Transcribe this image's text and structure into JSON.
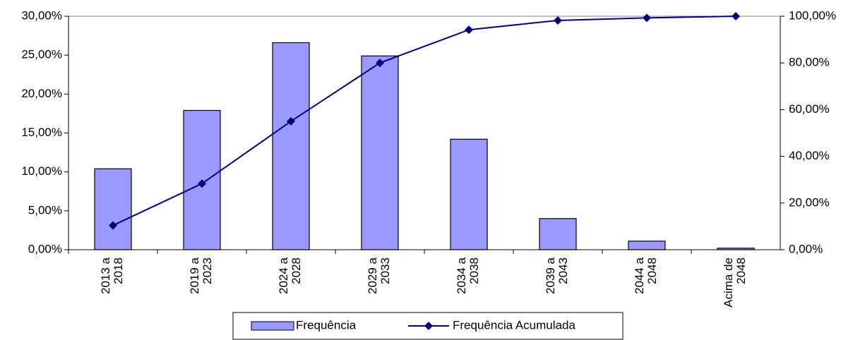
{
  "chart_data": {
    "type": "bar",
    "categories": [
      "2013 a 2018",
      "2019 a 2023",
      "2024 a 2028",
      "2029 a 2033",
      "2034 a 2038",
      "2039 a 2043",
      "2044 a 2048",
      "Acima de 2048"
    ],
    "series": [
      {
        "name": "Frequência",
        "type": "bar",
        "color": "#9999ff",
        "values": [
          10.4,
          17.9,
          26.6,
          24.9,
          14.2,
          4.0,
          1.1,
          0.2
        ]
      },
      {
        "name": "Frequência Acumulada",
        "type": "line",
        "axis": "y2",
        "color": "#000080",
        "values": [
          10.4,
          28.3,
          55.0,
          80.0,
          94.2,
          98.2,
          99.3,
          100.0
        ]
      }
    ],
    "ylim": [
      0,
      30
    ],
    "yticks": [
      {
        "value": 0,
        "label": "0,00%"
      },
      {
        "value": 5,
        "label": "5,00%"
      },
      {
        "value": 10,
        "label": "10,00%"
      },
      {
        "value": 15,
        "label": "15,00%"
      },
      {
        "value": 20,
        "label": "20,00%"
      },
      {
        "value": 25,
        "label": "25,00%"
      },
      {
        "value": 30,
        "label": "30,00%"
      }
    ],
    "y2lim": [
      0,
      100
    ],
    "y2ticks": [
      {
        "value": 0,
        "label": "0,00%"
      },
      {
        "value": 20,
        "label": "20,00%"
      },
      {
        "value": 40,
        "label": "40,00%"
      },
      {
        "value": 60,
        "label": "60,00%"
      },
      {
        "value": 80,
        "label": "80,00%"
      },
      {
        "value": 100,
        "label": "100,00%"
      }
    ],
    "legend": "bottom"
  }
}
